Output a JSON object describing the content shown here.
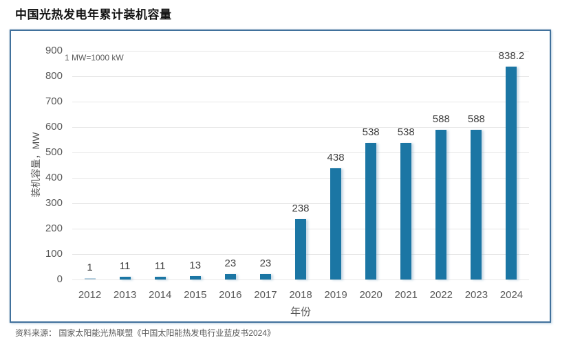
{
  "page": {
    "title": "中国光热发电年累计装机容量",
    "source": "资料来源： 国家太阳能光热联盟《中国太阳能热发电行业蓝皮书2024》"
  },
  "chart_data": {
    "type": "bar",
    "title": "中国光热发电年累计装机容量",
    "note": "1 MW=1000 kW",
    "categories": [
      "2012",
      "2013",
      "2014",
      "2015",
      "2016",
      "2017",
      "2018",
      "2019",
      "2020",
      "2021",
      "2022",
      "2023",
      "2024"
    ],
    "values": [
      1,
      11,
      11,
      13,
      23,
      23,
      238,
      438,
      538,
      538,
      588,
      588,
      838.2
    ],
    "xlabel": "年份",
    "ylabel": "装机容量，MW",
    "ylim": [
      0,
      900
    ],
    "ytick_step": 100,
    "yticks": [
      0,
      100,
      200,
      300,
      400,
      500,
      600,
      700,
      800,
      900
    ],
    "grid": true,
    "legend": "none",
    "colors": {
      "bar": "#1B76A4",
      "first_bar": "#B5CFDF",
      "frame_border": "#41719C",
      "gridline": "#E6E6E6",
      "axis_text": "#595959",
      "value_label_text": "#3F3F3F"
    }
  }
}
